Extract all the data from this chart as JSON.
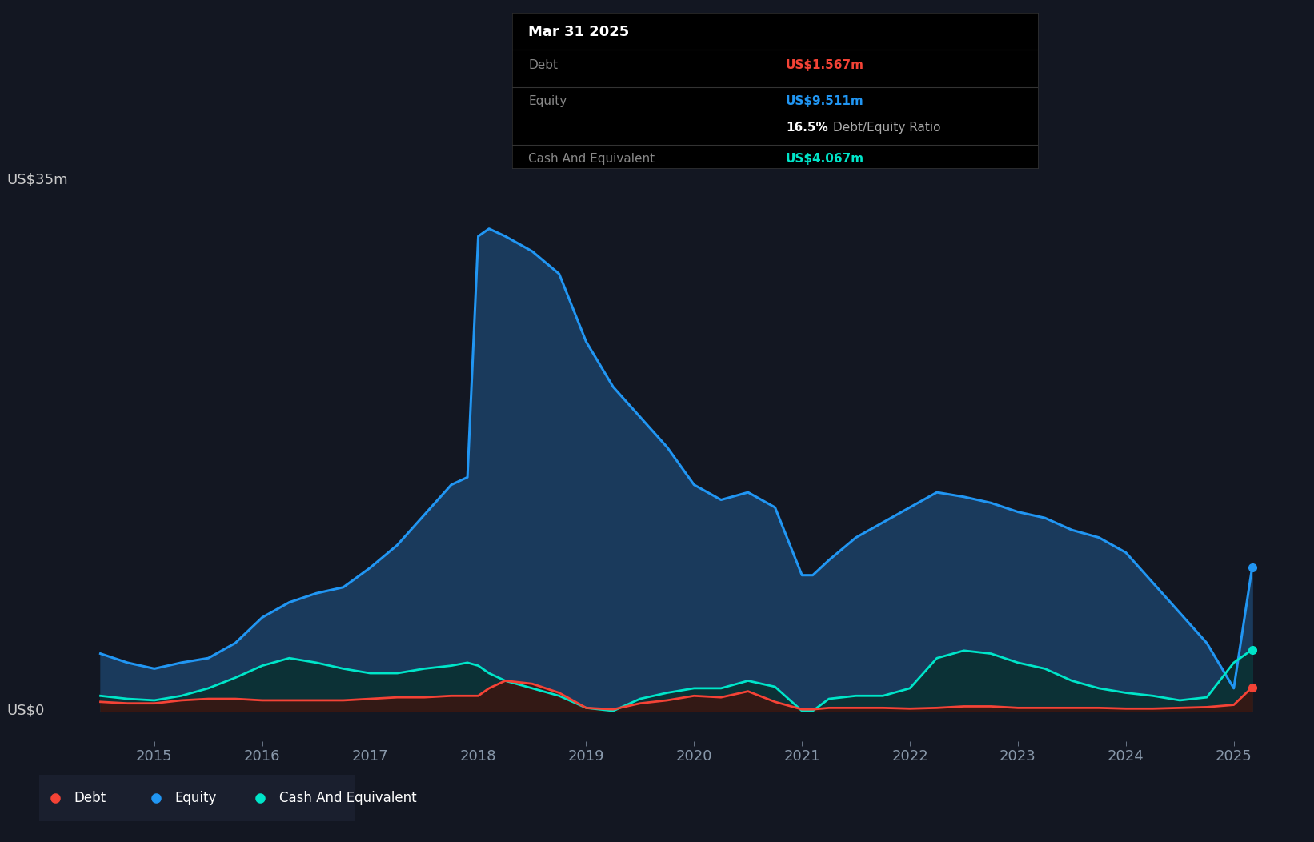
{
  "background_color": "#131722",
  "plot_bg_color": "#131722",
  "equity_color": "#2196f3",
  "equity_fill_color": "#1a3a5c",
  "debt_color": "#f44336",
  "debt_fill_color": "#3a1510",
  "cash_color": "#00e5c9",
  "cash_fill_color": "#0a3030",
  "grid_color": "#1e2535",
  "legend_bg": "#1a1f2e",
  "tooltip_bg": "#000000",
  "tooltip_title": "Mar 31 2025",
  "tooltip_debt_label": "Debt",
  "tooltip_debt_value": "US$1.567m",
  "tooltip_equity_label": "Equity",
  "tooltip_equity_value": "US$9.511m",
  "tooltip_ratio": "16.5% Debt/Equity Ratio",
  "tooltip_cash_label": "Cash And Equivalent",
  "tooltip_cash_value": "US$4.067m",
  "ylabel_top": "US$35m",
  "ylabel_zero": "US$0",
  "ylim": [
    -2,
    36
  ],
  "xlim": [
    2014.3,
    2025.5
  ],
  "time_points": [
    2014.5,
    2014.75,
    2015.0,
    2015.25,
    2015.5,
    2015.75,
    2016.0,
    2016.25,
    2016.5,
    2016.75,
    2017.0,
    2017.25,
    2017.5,
    2017.75,
    2017.9,
    2018.0,
    2018.1,
    2018.25,
    2018.5,
    2018.75,
    2019.0,
    2019.25,
    2019.5,
    2019.75,
    2020.0,
    2020.25,
    2020.5,
    2020.75,
    2021.0,
    2021.1,
    2021.25,
    2021.5,
    2021.75,
    2022.0,
    2022.25,
    2022.5,
    2022.75,
    2023.0,
    2023.25,
    2023.5,
    2023.75,
    2024.0,
    2024.25,
    2024.5,
    2024.75,
    2025.0,
    2025.17
  ],
  "equity": [
    3.8,
    3.2,
    2.8,
    3.2,
    3.5,
    4.5,
    6.2,
    7.2,
    7.8,
    8.2,
    9.5,
    11.0,
    13.0,
    15.0,
    15.5,
    31.5,
    32.0,
    31.5,
    30.5,
    29.0,
    24.5,
    21.5,
    19.5,
    17.5,
    15.0,
    14.0,
    14.5,
    13.5,
    9.0,
    9.0,
    10.0,
    11.5,
    12.5,
    13.5,
    14.5,
    14.2,
    13.8,
    13.2,
    12.8,
    12.0,
    11.5,
    10.5,
    8.5,
    6.5,
    4.5,
    1.5,
    9.511
  ],
  "debt": [
    0.6,
    0.5,
    0.5,
    0.7,
    0.8,
    0.8,
    0.7,
    0.7,
    0.7,
    0.7,
    0.8,
    0.9,
    0.9,
    1.0,
    1.0,
    1.0,
    1.5,
    2.0,
    1.8,
    1.2,
    0.2,
    0.1,
    0.5,
    0.7,
    1.0,
    0.9,
    1.3,
    0.6,
    0.1,
    0.1,
    0.2,
    0.2,
    0.2,
    0.15,
    0.2,
    0.3,
    0.3,
    0.2,
    0.2,
    0.2,
    0.2,
    0.15,
    0.15,
    0.2,
    0.25,
    0.4,
    1.567
  ],
  "cash": [
    1.0,
    0.8,
    0.7,
    1.0,
    1.5,
    2.2,
    3.0,
    3.5,
    3.2,
    2.8,
    2.5,
    2.5,
    2.8,
    3.0,
    3.2,
    3.0,
    2.5,
    2.0,
    1.5,
    1.0,
    0.2,
    0.0,
    0.8,
    1.2,
    1.5,
    1.5,
    2.0,
    1.6,
    0.0,
    0.0,
    0.8,
    1.0,
    1.0,
    1.5,
    3.5,
    4.0,
    3.8,
    3.2,
    2.8,
    2.0,
    1.5,
    1.2,
    1.0,
    0.7,
    0.9,
    3.2,
    4.067
  ],
  "x_ticks": [
    2015,
    2016,
    2017,
    2018,
    2019,
    2020,
    2021,
    2022,
    2023,
    2024,
    2025
  ]
}
